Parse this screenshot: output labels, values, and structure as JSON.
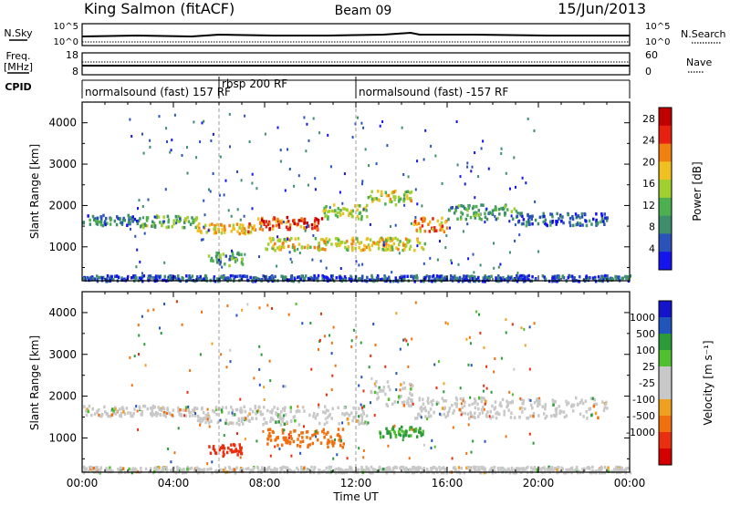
{
  "header": {
    "station": "King Salmon (fitACF)",
    "beam": "Beam 09",
    "date": "15/Jun/2013"
  },
  "summary_panels": {
    "nsky": {
      "label": "N.Sky",
      "ticks": [
        "10^5",
        "10^0"
      ]
    },
    "nsearch": {
      "label": "N.Search",
      "ticks": [
        "10^5",
        "10^0"
      ]
    },
    "freq": {
      "label_line1": "Freq.",
      "label_line2": "[MHz]",
      "ticks": [
        "18",
        "8"
      ]
    },
    "nave": {
      "label": "Nave",
      "ticks": [
        "60",
        "0"
      ]
    },
    "cpid": {
      "label": "CPID"
    }
  },
  "cpid_segments": [
    {
      "label": "normalsound (fast) 157 RF",
      "start_hour": 0
    },
    {
      "label": "rbsp 200 RF",
      "start_hour": 6
    },
    {
      "label": "normalsound (fast) -157 RF",
      "start_hour": 12
    }
  ],
  "colors": {
    "power_scale": [
      "#1414ee",
      "#2a52b8",
      "#3f8e6b",
      "#4cb050",
      "#a0d030",
      "#f0c020",
      "#f08010",
      "#e82010",
      "#c00000"
    ],
    "velocity_scale": [
      "#d40000",
      "#e83010",
      "#f07010",
      "#f0a020",
      "#c8c8c8",
      "#c8c8c8",
      "#50c030",
      "#2a9a3a",
      "#2255bb",
      "#1414cc"
    ],
    "ground_scatter": "#c8c8c8"
  },
  "chart_data": [
    {
      "type": "heatmap",
      "title": "",
      "xlabel": "",
      "ylabel": "Slant Range [km]",
      "x_ticks": [
        "00:00",
        "04:00",
        "08:00",
        "12:00",
        "16:00",
        "20:00",
        "00:00"
      ],
      "x_range_hours": [
        0,
        24
      ],
      "y_ticks": [
        1000,
        2000,
        3000,
        4000
      ],
      "ylim": [
        180,
        4500
      ],
      "colorbar": {
        "label": "Power [dB]",
        "ticks": [
          "28",
          "24",
          "20",
          "16",
          "12",
          "8",
          "4"
        ],
        "range": [
          0,
          30
        ]
      },
      "vertical_markers_hours": [
        6,
        12
      ],
      "echo_bands": [
        {
          "t0": 0.0,
          "t1": 2.5,
          "r0": 1550,
          "r1": 1800,
          "level": 7
        },
        {
          "t0": 2.5,
          "t1": 5.0,
          "r0": 1500,
          "r1": 1800,
          "level": 12
        },
        {
          "t0": 5.0,
          "t1": 7.5,
          "r0": 1350,
          "r1": 1600,
          "level": 19
        },
        {
          "t0": 7.5,
          "t1": 10.5,
          "r0": 1450,
          "r1": 1750,
          "level": 24
        },
        {
          "t0": 10.5,
          "t1": 12.5,
          "r0": 1700,
          "r1": 2050,
          "level": 15
        },
        {
          "t0": 12.5,
          "t1": 14.5,
          "r0": 2050,
          "r1": 2400,
          "level": 16
        },
        {
          "t0": 14.5,
          "t1": 16.0,
          "r0": 1400,
          "r1": 1750,
          "level": 21
        },
        {
          "t0": 16.0,
          "t1": 19.0,
          "r0": 1700,
          "r1": 2050,
          "level": 10
        },
        {
          "t0": 19.0,
          "t1": 23.0,
          "r0": 1550,
          "r1": 1850,
          "level": 6
        },
        {
          "t0": 8.0,
          "t1": 15.0,
          "r0": 950,
          "r1": 1250,
          "level": 17
        },
        {
          "t0": 5.5,
          "t1": 7.0,
          "r0": 580,
          "r1": 900,
          "level": 10
        },
        {
          "t0": 0.0,
          "t1": 24.0,
          "r0": 200,
          "r1": 340,
          "level": 5
        }
      ]
    },
    {
      "type": "heatmap",
      "title": "",
      "xlabel": "Time UT",
      "ylabel": "Slant Range [km]",
      "x_ticks": [
        "00:00",
        "04:00",
        "08:00",
        "12:00",
        "16:00",
        "20:00",
        "00:00"
      ],
      "x_range_hours": [
        0,
        24
      ],
      "y_ticks": [
        1000,
        2000,
        3000,
        4000
      ],
      "ylim": [
        180,
        4500
      ],
      "colorbar": {
        "label": "Velocity [m s⁻¹]",
        "ticks": [
          "1000",
          "500",
          "100",
          "25",
          "-25",
          "-100",
          "-500",
          "-1000"
        ],
        "range": [
          -1200,
          1200
        ]
      },
      "vertical_markers_hours": [
        6,
        12
      ],
      "echo_bands": [
        {
          "t0": 0.0,
          "t1": 5.0,
          "r0": 1550,
          "r1": 1800,
          "kind": "ground"
        },
        {
          "t0": 5.0,
          "t1": 12.5,
          "r0": 1350,
          "r1": 1800,
          "kind": "ground"
        },
        {
          "t0": 12.5,
          "t1": 14.5,
          "r0": 1800,
          "r1": 2400,
          "kind": "ground"
        },
        {
          "t0": 14.5,
          "t1": 23.0,
          "r0": 1500,
          "r1": 2000,
          "kind": "ground"
        },
        {
          "t0": 8.0,
          "t1": 11.5,
          "r0": 800,
          "r1": 1250,
          "kind": "velocity",
          "velocity": -300
        },
        {
          "t0": 13.0,
          "t1": 15.0,
          "r0": 1050,
          "r1": 1300,
          "kind": "velocity",
          "velocity": 150
        },
        {
          "t0": 5.5,
          "t1": 7.0,
          "r0": 600,
          "r1": 900,
          "kind": "velocity",
          "velocity": -800
        },
        {
          "t0": 0.0,
          "t1": 24.0,
          "r0": 200,
          "r1": 340,
          "kind": "ground"
        }
      ]
    }
  ]
}
